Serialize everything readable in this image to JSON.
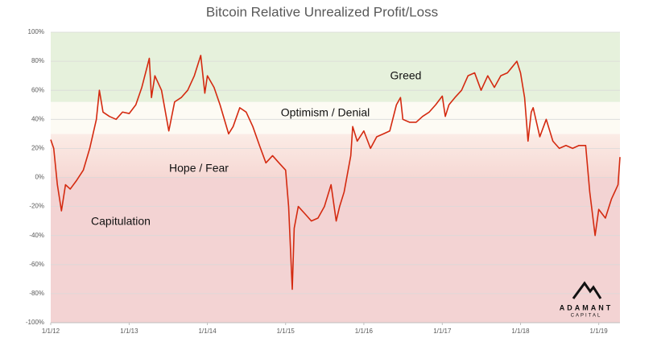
{
  "chart_data": {
    "type": "line",
    "title": "Bitcoin Relative Unrealized Profit/Loss",
    "xlim": [
      "2012-01-01",
      "2019-04-10"
    ],
    "xticks": [
      {
        "value": "2012-01-01",
        "label": "1/1/12"
      },
      {
        "value": "2013-01-01",
        "label": "1/1/13"
      },
      {
        "value": "2014-01-01",
        "label": "1/1/14"
      },
      {
        "value": "2015-01-01",
        "label": "1/1/15"
      },
      {
        "value": "2016-01-01",
        "label": "1/1/16"
      },
      {
        "value": "2017-01-01",
        "label": "1/1/17"
      },
      {
        "value": "2018-01-01",
        "label": "1/1/18"
      },
      {
        "value": "2019-01-01",
        "label": "1/1/19"
      }
    ],
    "ylim": [
      -100,
      100
    ],
    "yticks": [
      {
        "value": -100,
        "label": "-100%"
      },
      {
        "value": -80,
        "label": "-80%"
      },
      {
        "value": -60,
        "label": "-60%"
      },
      {
        "value": -40,
        "label": "-40%"
      },
      {
        "value": -20,
        "label": "-20%"
      },
      {
        "value": 0,
        "label": "0%"
      },
      {
        "value": 20,
        "label": "20%"
      },
      {
        "value": 40,
        "label": "40%"
      },
      {
        "value": 60,
        "label": "60%"
      },
      {
        "value": 80,
        "label": "80%"
      },
      {
        "value": 100,
        "label": "100%"
      }
    ],
    "grid": true,
    "zones": [
      {
        "name": "Capitulation",
        "from": -100,
        "to": 0,
        "color": "#f3d3d3"
      },
      {
        "name": "Hope / Fear",
        "from": 0,
        "to": 30,
        "color": "#f8e0dc"
      },
      {
        "name": "Optimism / Denial",
        "from": 30,
        "to": 52,
        "color": "#fdfbf4"
      },
      {
        "name": "Greed",
        "from": 52,
        "to": 100,
        "color": "#e6f1dc"
      }
    ],
    "watermark": {
      "name": "ADAMANT",
      "sub": "CAPITAL"
    },
    "series": [
      {
        "name": "Relative Unrealized Profit/Loss",
        "color": "#d42a10",
        "x": [
          "2012-01-01",
          "2012-01-15",
          "2012-02-01",
          "2012-02-20",
          "2012-03-10",
          "2012-04-01",
          "2012-05-01",
          "2012-06-01",
          "2012-07-01",
          "2012-08-01",
          "2012-08-15",
          "2012-09-01",
          "2012-10-01",
          "2012-11-01",
          "2012-12-01",
          "2013-01-01",
          "2013-02-01",
          "2013-03-01",
          "2013-04-05",
          "2013-04-15",
          "2013-05-01",
          "2013-06-01",
          "2013-07-05",
          "2013-08-01",
          "2013-09-01",
          "2013-10-01",
          "2013-11-01",
          "2013-12-01",
          "2013-12-20",
          "2014-01-01",
          "2014-02-01",
          "2014-03-01",
          "2014-04-10",
          "2014-05-01",
          "2014-06-01",
          "2014-07-01",
          "2014-08-01",
          "2014-09-01",
          "2014-10-01",
          "2014-11-01",
          "2014-12-01",
          "2015-01-01",
          "2015-01-15",
          "2015-02-01",
          "2015-02-10",
          "2015-03-01",
          "2015-04-01",
          "2015-05-01",
          "2015-06-01",
          "2015-07-01",
          "2015-08-01",
          "2015-08-25",
          "2015-09-10",
          "2015-10-01",
          "2015-11-01",
          "2015-11-10",
          "2015-12-01",
          "2016-01-01",
          "2016-02-01",
          "2016-03-01",
          "2016-04-01",
          "2016-05-01",
          "2016-06-01",
          "2016-06-20",
          "2016-07-01",
          "2016-08-01",
          "2016-09-01",
          "2016-10-01",
          "2016-11-01",
          "2016-12-01",
          "2017-01-01",
          "2017-01-15",
          "2017-02-01",
          "2017-03-01",
          "2017-04-01",
          "2017-05-01",
          "2017-06-01",
          "2017-07-01",
          "2017-08-01",
          "2017-09-01",
          "2017-10-01",
          "2017-11-01",
          "2017-12-15",
          "2018-01-01",
          "2018-01-20",
          "2018-02-05",
          "2018-02-20",
          "2018-03-01",
          "2018-04-01",
          "2018-05-01",
          "2018-06-01",
          "2018-07-01",
          "2018-08-01",
          "2018-09-01",
          "2018-10-01",
          "2018-11-01",
          "2018-11-20",
          "2018-12-15",
          "2019-01-01",
          "2019-02-01",
          "2019-03-01",
          "2019-04-01",
          "2019-04-10"
        ],
        "values": [
          26,
          20,
          -5,
          -23,
          -5,
          -8,
          -2,
          5,
          20,
          40,
          60,
          45,
          42,
          40,
          45,
          44,
          50,
          62,
          82,
          55,
          70,
          60,
          32,
          52,
          55,
          60,
          70,
          84,
          58,
          70,
          62,
          50,
          30,
          35,
          48,
          45,
          35,
          22,
          10,
          15,
          10,
          5,
          -20,
          -77,
          -35,
          -20,
          -25,
          -30,
          -28,
          -20,
          -5,
          -30,
          -20,
          -10,
          15,
          35,
          25,
          32,
          20,
          28,
          30,
          32,
          50,
          55,
          40,
          38,
          38,
          42,
          45,
          50,
          56,
          42,
          50,
          55,
          60,
          70,
          72,
          60,
          70,
          62,
          70,
          72,
          80,
          72,
          55,
          25,
          45,
          48,
          28,
          40,
          25,
          20,
          22,
          20,
          22,
          22,
          -10,
          -40,
          -22,
          -28,
          -15,
          -5,
          14
        ]
      }
    ]
  }
}
